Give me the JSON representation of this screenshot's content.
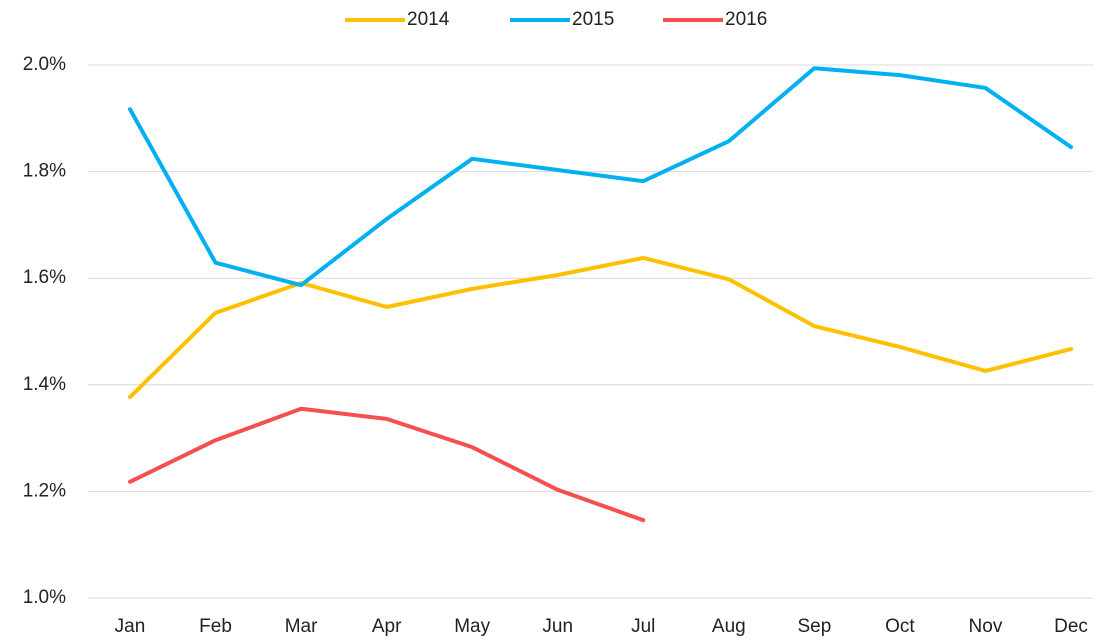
{
  "chart_data": {
    "type": "line",
    "categories": [
      "Jan",
      "Feb",
      "Mar",
      "Apr",
      "May",
      "Jun",
      "Jul",
      "Aug",
      "Sep",
      "Oct",
      "Nov",
      "Dec"
    ],
    "series": [
      {
        "name": "2014",
        "color": "#FFC000",
        "values": [
          1.377,
          1.535,
          1.591,
          1.546,
          1.58,
          1.606,
          1.638,
          1.598,
          1.51,
          1.471,
          1.426,
          1.467
        ]
      },
      {
        "name": "2015",
        "color": "#00B0F0",
        "values": [
          1.917,
          1.629,
          1.587,
          1.711,
          1.824,
          1.803,
          1.782,
          1.857,
          1.994,
          1.981,
          1.957,
          1.846
        ]
      },
      {
        "name": "2016",
        "color": "#F4504F",
        "values": [
          1.218,
          1.296,
          1.355,
          1.336,
          1.283,
          1.203,
          1.146,
          null,
          null,
          null,
          null,
          null
        ]
      }
    ],
    "ylim": [
      1.0,
      2.0
    ],
    "yticks": [
      {
        "value": 1.0,
        "label": "1.0%"
      },
      {
        "value": 1.2,
        "label": "1.2%"
      },
      {
        "value": 1.4,
        "label": "1.4%"
      },
      {
        "value": 1.6,
        "label": "1.6%"
      },
      {
        "value": 1.8,
        "label": "1.8%"
      },
      {
        "value": 2.0,
        "label": "2.0%"
      }
    ],
    "grid": true,
    "legend": "top"
  }
}
